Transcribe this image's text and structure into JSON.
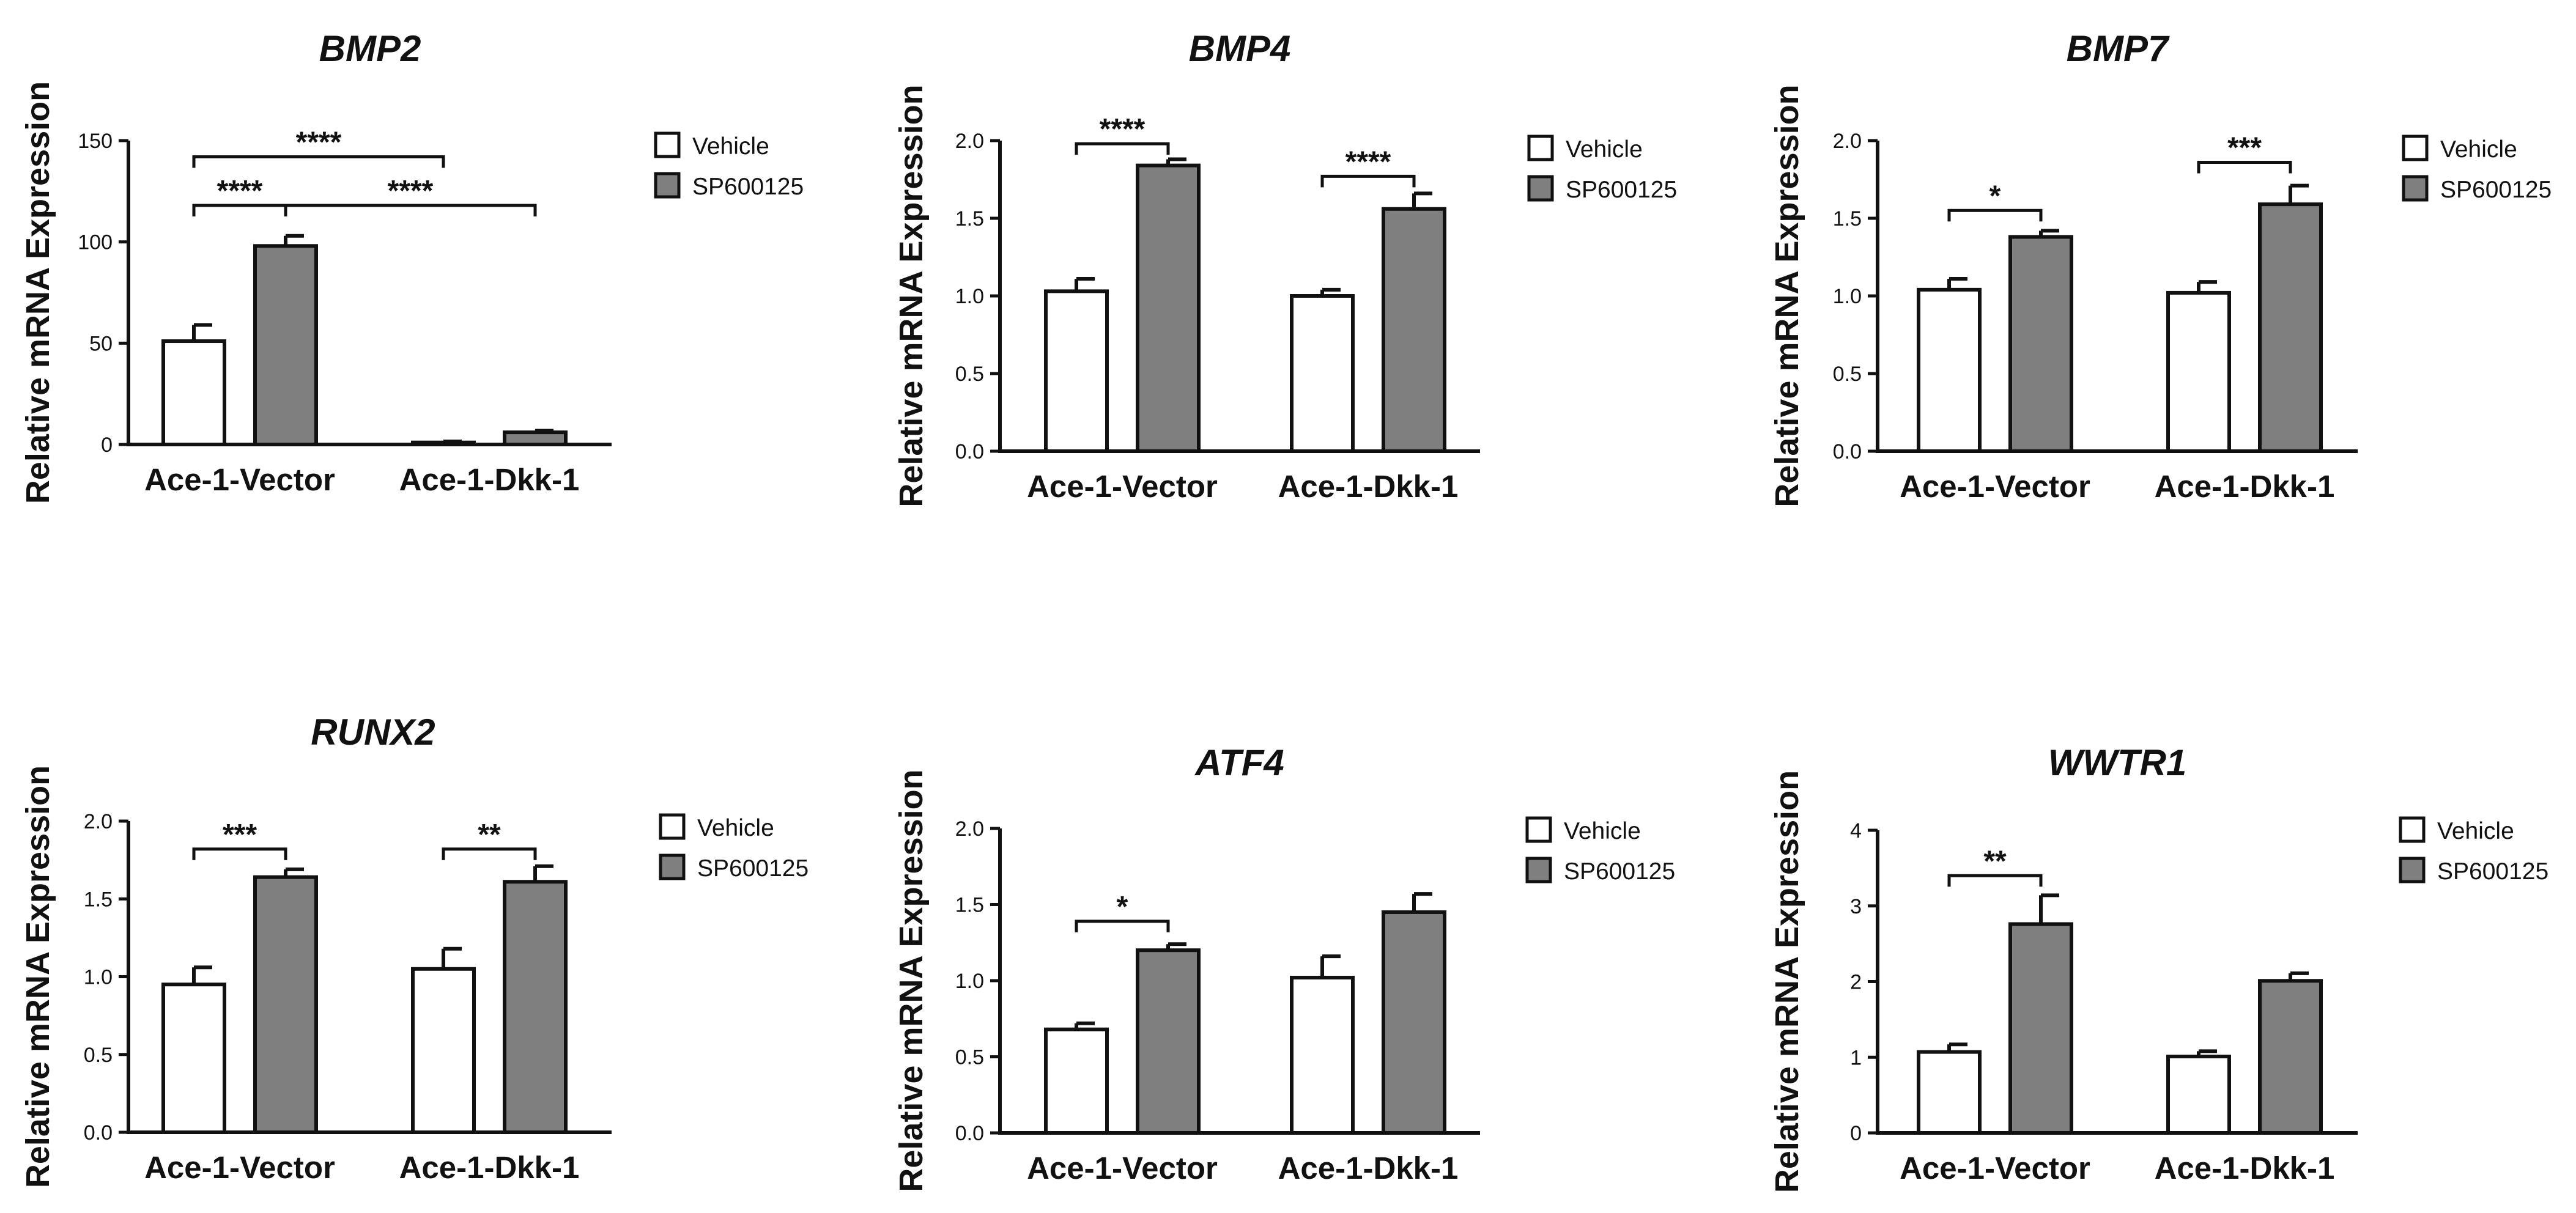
{
  "chart_data": [
    {
      "type": "bar",
      "title": "BMP2",
      "ylabel": "Relative mRNA Expression",
      "xlabel": "",
      "categories": [
        "Ace-1-Vector",
        "Ace-1-Dkk-1"
      ],
      "ylim": [
        0,
        150
      ],
      "yticks": [
        0,
        50,
        100,
        150
      ],
      "series": [
        {
          "name": "Vehicle",
          "color": "#ffffff",
          "values": [
            51,
            1
          ],
          "errors": [
            8,
            0.5
          ]
        },
        {
          "name": "SP600125",
          "color": "#7f7f7f",
          "values": [
            98,
            6
          ],
          "errors": [
            5,
            0.8
          ]
        }
      ],
      "significance": [
        {
          "label": "****",
          "from": [
            0,
            0
          ],
          "to": [
            0,
            1
          ],
          "y": 118
        },
        {
          "label": "****",
          "from": [
            0,
            1
          ],
          "to": [
            1,
            1
          ],
          "y": 118
        },
        {
          "label": "****",
          "from": [
            0,
            0
          ],
          "to": [
            1,
            0
          ],
          "y": 142
        }
      ]
    },
    {
      "type": "bar",
      "title": "BMP4",
      "ylabel": "Relative mRNA Expression",
      "xlabel": "",
      "categories": [
        "Ace-1-Vector",
        "Ace-1-Dkk-1"
      ],
      "ylim": [
        0,
        2.0
      ],
      "yticks": [
        "0.0",
        "0.5",
        "1.0",
        "1.5",
        "2.0"
      ],
      "series": [
        {
          "name": "Vehicle",
          "color": "#ffffff",
          "values": [
            1.03,
            1.0
          ],
          "errors": [
            0.08,
            0.04
          ]
        },
        {
          "name": "SP600125",
          "color": "#7f7f7f",
          "values": [
            1.84,
            1.56
          ],
          "errors": [
            0.04,
            0.1
          ]
        }
      ],
      "significance": [
        {
          "label": "****",
          "from": [
            0,
            0
          ],
          "to": [
            0,
            1
          ],
          "y": 1.98
        },
        {
          "label": "****",
          "from": [
            1,
            0
          ],
          "to": [
            1,
            1
          ],
          "y": 1.77
        }
      ]
    },
    {
      "type": "bar",
      "title": "BMP7",
      "ylabel": "Relative mRNA Expression",
      "xlabel": "",
      "categories": [
        "Ace-1-Vector",
        "Ace-1-Dkk-1"
      ],
      "ylim": [
        0,
        2.0
      ],
      "yticks": [
        "0.0",
        "0.5",
        "1.0",
        "1.5",
        "2.0"
      ],
      "series": [
        {
          "name": "Vehicle",
          "color": "#ffffff",
          "values": [
            1.04,
            1.02
          ],
          "errors": [
            0.07,
            0.07
          ]
        },
        {
          "name": "SP600125",
          "color": "#7f7f7f",
          "values": [
            1.38,
            1.59
          ],
          "errors": [
            0.04,
            0.12
          ]
        }
      ],
      "significance": [
        {
          "label": "*",
          "from": [
            0,
            0
          ],
          "to": [
            0,
            1
          ],
          "y": 1.55
        },
        {
          "label": "***",
          "from": [
            1,
            0
          ],
          "to": [
            1,
            1
          ],
          "y": 1.86
        }
      ]
    },
    {
      "type": "bar",
      "title": "RUNX2",
      "ylabel": "Relative mRNA Expression",
      "xlabel": "",
      "categories": [
        "Ace-1-Vector",
        "Ace-1-Dkk-1"
      ],
      "ylim": [
        0,
        2.0
      ],
      "yticks": [
        "0.0",
        "0.5",
        "1.0",
        "1.5",
        "2.0"
      ],
      "series": [
        {
          "name": "Vehicle",
          "color": "#ffffff",
          "values": [
            0.95,
            1.05
          ],
          "errors": [
            0.11,
            0.13
          ]
        },
        {
          "name": "SP600125",
          "color": "#7f7f7f",
          "values": [
            1.64,
            1.61
          ],
          "errors": [
            0.05,
            0.1
          ]
        }
      ],
      "significance": [
        {
          "label": "***",
          "from": [
            0,
            0
          ],
          "to": [
            0,
            1
          ],
          "y": 1.82
        },
        {
          "label": "**",
          "from": [
            1,
            0
          ],
          "to": [
            1,
            1
          ],
          "y": 1.82
        }
      ]
    },
    {
      "type": "bar",
      "title": "ATF4",
      "ylabel": "Relative mRNA Expression",
      "xlabel": "",
      "categories": [
        "Ace-1-Vector",
        "Ace-1-Dkk-1"
      ],
      "ylim": [
        0,
        2.0
      ],
      "yticks": [
        "0.0",
        "0.5",
        "1.0",
        "1.5",
        "2.0"
      ],
      "series": [
        {
          "name": "Vehicle",
          "color": "#ffffff",
          "values": [
            0.68,
            1.02
          ],
          "errors": [
            0.04,
            0.14
          ]
        },
        {
          "name": "SP600125",
          "color": "#7f7f7f",
          "values": [
            1.2,
            1.45
          ],
          "errors": [
            0.04,
            0.12
          ]
        }
      ],
      "significance": [
        {
          "label": "*",
          "from": [
            0,
            0
          ],
          "to": [
            0,
            1
          ],
          "y": 1.39
        }
      ]
    },
    {
      "type": "bar",
      "title": "WWTR1",
      "ylabel": "Relative mRNA Expression",
      "xlabel": "",
      "categories": [
        "Ace-1-Vector",
        "Ace-1-Dkk-1"
      ],
      "ylim": [
        0,
        4
      ],
      "yticks": [
        0,
        1,
        2,
        3,
        4
      ],
      "series": [
        {
          "name": "Vehicle",
          "color": "#ffffff",
          "values": [
            1.07,
            1.01
          ],
          "errors": [
            0.1,
            0.07
          ]
        },
        {
          "name": "SP600125",
          "color": "#7f7f7f",
          "values": [
            2.76,
            2.01
          ],
          "errors": [
            0.38,
            0.1
          ]
        }
      ],
      "significance": [
        {
          "label": "**",
          "from": [
            0,
            0
          ],
          "to": [
            0,
            1
          ],
          "y": 3.4
        }
      ]
    }
  ],
  "legend": {
    "items": [
      {
        "label": "Vehicle",
        "color": "#ffffff"
      },
      {
        "label": "SP600125",
        "color": "#7f7f7f"
      }
    ]
  }
}
